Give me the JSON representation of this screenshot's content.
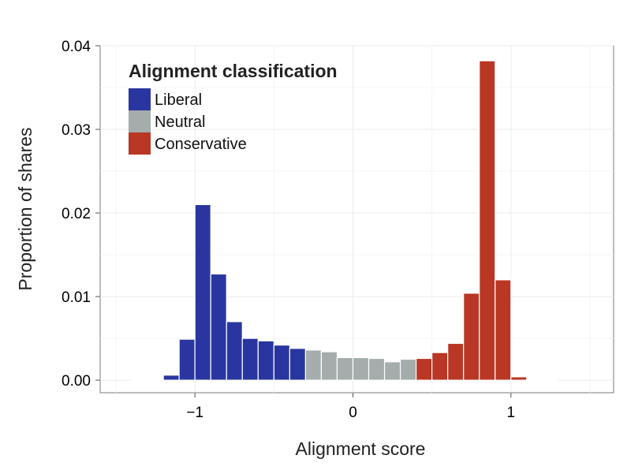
{
  "chart_data": {
    "type": "bar",
    "title": "",
    "xlabel": "Alignment score",
    "ylabel": "Proportion of shares",
    "xlim": [
      -1.6,
      1.65
    ],
    "ylim": [
      -0.0015,
      0.04
    ],
    "xticks": [
      {
        "value": -1,
        "label": "−1"
      },
      {
        "value": 0,
        "label": "0"
      },
      {
        "value": 1,
        "label": "1"
      }
    ],
    "yticks": [
      {
        "value": 0,
        "label": "0.00"
      },
      {
        "value": 0.01,
        "label": "0.01"
      },
      {
        "value": 0.02,
        "label": "0.02"
      },
      {
        "value": 0.03,
        "label": "0.03"
      },
      {
        "value": 0.04,
        "label": "0.04"
      }
    ],
    "grid": true,
    "bin_width": 0.1,
    "legend": {
      "title": "Alignment classification",
      "placement": "top-left",
      "entries": [
        {
          "key": "liberal",
          "label": "Liberal",
          "color": "#2A36A0"
        },
        {
          "key": "neutral",
          "label": "Neutral",
          "color": "#A5ACAC"
        },
        {
          "key": "conservative",
          "label": "Conservative",
          "color": "#B93724"
        }
      ]
    },
    "bars": [
      {
        "x": -1.35,
        "value": 5e-05,
        "class": "liberal"
      },
      {
        "x": -1.25,
        "value": 0.0001,
        "class": "liberal"
      },
      {
        "x": -1.15,
        "value": 0.0006,
        "class": "liberal"
      },
      {
        "x": -1.05,
        "value": 0.0049,
        "class": "liberal"
      },
      {
        "x": -0.95,
        "value": 0.021,
        "class": "liberal"
      },
      {
        "x": -0.85,
        "value": 0.0127,
        "class": "liberal"
      },
      {
        "x": -0.75,
        "value": 0.007,
        "class": "liberal"
      },
      {
        "x": -0.65,
        "value": 0.005,
        "class": "liberal"
      },
      {
        "x": -0.55,
        "value": 0.0047,
        "class": "liberal"
      },
      {
        "x": -0.45,
        "value": 0.0042,
        "class": "liberal"
      },
      {
        "x": -0.35,
        "value": 0.0038,
        "class": "liberal"
      },
      {
        "x": -0.25,
        "value": 0.0036,
        "class": "neutral"
      },
      {
        "x": -0.15,
        "value": 0.0034,
        "class": "neutral"
      },
      {
        "x": -0.05,
        "value": 0.0027,
        "class": "neutral"
      },
      {
        "x": 0.05,
        "value": 0.0027,
        "class": "neutral"
      },
      {
        "x": 0.15,
        "value": 0.0026,
        "class": "neutral"
      },
      {
        "x": 0.25,
        "value": 0.0022,
        "class": "neutral"
      },
      {
        "x": 0.35,
        "value": 0.0025,
        "class": "neutral"
      },
      {
        "x": 0.45,
        "value": 0.0026,
        "class": "conservative"
      },
      {
        "x": 0.55,
        "value": 0.0033,
        "class": "conservative"
      },
      {
        "x": 0.65,
        "value": 0.0044,
        "class": "conservative"
      },
      {
        "x": 0.75,
        "value": 0.0104,
        "class": "conservative"
      },
      {
        "x": 0.85,
        "value": 0.0382,
        "class": "conservative"
      },
      {
        "x": 0.95,
        "value": 0.012,
        "class": "conservative"
      },
      {
        "x": 1.05,
        "value": 0.0004,
        "class": "conservative"
      },
      {
        "x": 1.15,
        "value": 5e-05,
        "class": "conservative"
      },
      {
        "x": 1.25,
        "value": 2e-05,
        "class": "conservative"
      }
    ]
  }
}
